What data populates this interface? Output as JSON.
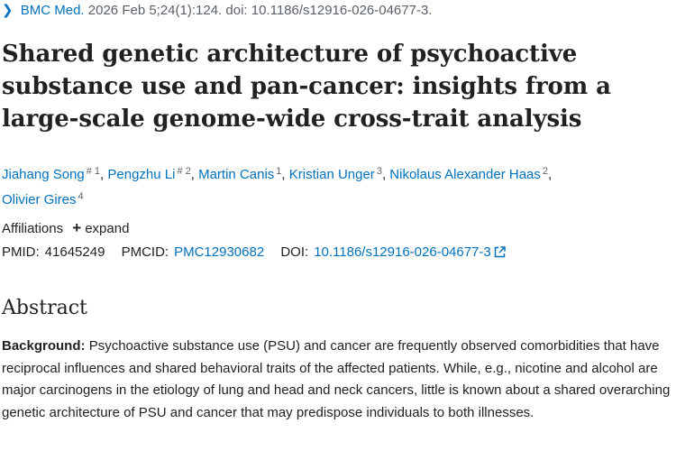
{
  "citation": {
    "journal": "BMC Med.",
    "details": "2026 Feb 5;24(1):124. doi: 10.1186/s12916-026-04677-3."
  },
  "title": "Shared genetic architecture of psychoactive substance use and pan-cancer: insights from a large-scale genome-wide cross-trait analysis",
  "authors": [
    {
      "name": "Jiahang Song",
      "sup": "# 1"
    },
    {
      "name": "Pengzhu Li",
      "sup": "# 2"
    },
    {
      "name": "Martin Canis",
      "sup": "1"
    },
    {
      "name": "Kristian Unger",
      "sup": "3"
    },
    {
      "name": "Nikolaus Alexander Haas",
      "sup": "2"
    },
    {
      "name": "Olivier Gires",
      "sup": "4"
    }
  ],
  "affiliations": {
    "label": "Affiliations",
    "expand_label": "expand"
  },
  "identifiers": {
    "pmid_label": "PMID:",
    "pmid": "41645249",
    "pmcid_label": "PMCID:",
    "pmcid": "PMC12930682",
    "doi_label": "DOI:",
    "doi": "10.1186/s12916-026-04677-3"
  },
  "abstract": {
    "heading": "Abstract",
    "background_label": "Background:",
    "background_text": "Psychoactive substance use (PSU) and cancer are frequently observed comorbidities that have reciprocal influences and shared behavioral traits of the affected patients. While, e.g., nicotine and alcohol are major carcinogens in the etiology of lung and head and neck cancers, little is known about a shared overarching genetic architecture of PSU and cancer that may predispose individuals to both illnesses."
  },
  "icons": {
    "chevron": "chevron-right-icon",
    "expand": "plus-icon",
    "external": "external-link-icon"
  },
  "colors": {
    "link": "#0071bc",
    "text": "#212121",
    "muted": "#5b616b"
  }
}
